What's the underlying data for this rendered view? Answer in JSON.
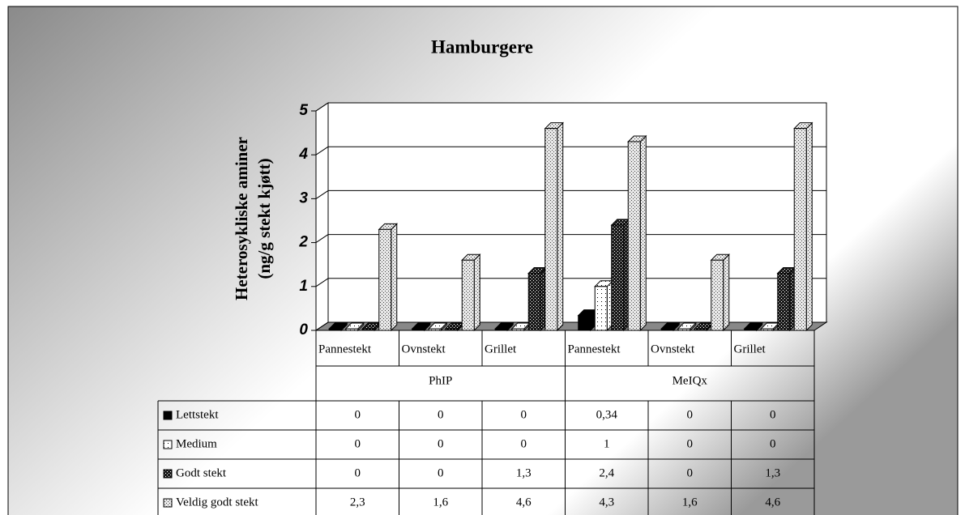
{
  "chart_data": {
    "type": "bar",
    "title": "Hamburgere",
    "y_label": [
      "Heterosykliske aminer",
      "(ng/g stekt kjøtt)"
    ],
    "categories": [
      "Pannestekt",
      "Ovnstekt",
      "Grillet",
      "Pannestekt",
      "Ovnstekt",
      "Grillet"
    ],
    "group_labels": [
      "PhIP",
      "MeIQx"
    ],
    "ylim": [
      0,
      5
    ],
    "yticks": [
      0,
      1,
      2,
      3,
      4,
      5
    ],
    "grid": true,
    "series": [
      {
        "name": "Lettstekt",
        "color": "#000000",
        "values": [
          0,
          0,
          0,
          0.34,
          0,
          0
        ],
        "value_labels": [
          "0",
          "0",
          "0",
          "0,34",
          "0",
          "0"
        ]
      },
      {
        "name": "Medium",
        "color": "#ffffff",
        "values": [
          0,
          0,
          0,
          1,
          0,
          0
        ],
        "value_labels": [
          "0",
          "0",
          "0",
          "1",
          "0",
          "0"
        ]
      },
      {
        "name": "Godt stekt",
        "color": "#1a1a1a",
        "values": [
          0,
          0,
          1.3,
          2.4,
          0,
          1.3
        ],
        "value_labels": [
          "0",
          "0",
          "1,3",
          "2,4",
          "0",
          "1,3"
        ]
      },
      {
        "name": "Veldig godt stekt",
        "color": "#e8e8e8",
        "values": [
          2.3,
          1.6,
          4.6,
          4.3,
          1.6,
          4.6
        ],
        "value_labels": [
          "2,3",
          "1,6",
          "4,6",
          "4,3",
          "1,6",
          "4,6"
        ]
      }
    ]
  }
}
